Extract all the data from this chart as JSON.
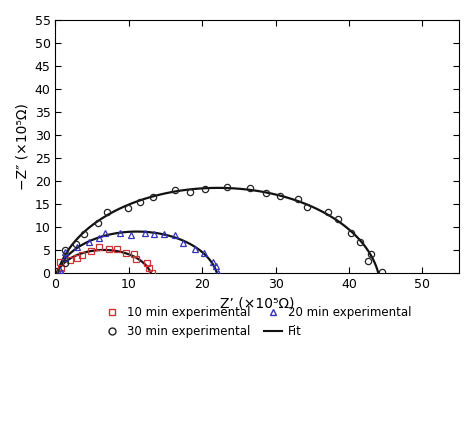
{
  "title": "",
  "xlabel": "Z’ (×10⁵Ω)",
  "ylabel": "−Z″ (×10⁵Ω)",
  "xlim": [
    0,
    55
  ],
  "ylim": [
    0,
    55
  ],
  "xticks": [
    0,
    10,
    20,
    30,
    40,
    50
  ],
  "yticks": [
    0,
    5,
    10,
    15,
    20,
    25,
    30,
    35,
    40,
    45,
    50,
    55
  ],
  "series": [
    {
      "label": "10 min experimental",
      "marker": "s",
      "color": "#cc3333",
      "R_left": 0.2,
      "R_right": 13.0,
      "peak_y": 5.0,
      "n_points": 16,
      "seed": 10
    },
    {
      "label": "20 min experimental",
      "marker": "^",
      "color": "#3333bb",
      "R_left": 0.2,
      "R_right": 22.0,
      "peak_y": 9.0,
      "n_points": 20,
      "seed": 20
    },
    {
      "label": "30 min experimental",
      "marker": "o",
      "color": "#222222",
      "R_left": 0.3,
      "R_right": 44.0,
      "peak_y": 18.5,
      "n_points": 26,
      "seed": 30
    }
  ],
  "fit_color": "#111111",
  "fit_linewidth": 1.6,
  "background_color": "#ffffff",
  "legend_fontsize": 8.5,
  "axis_fontsize": 10,
  "tick_fontsize": 9
}
